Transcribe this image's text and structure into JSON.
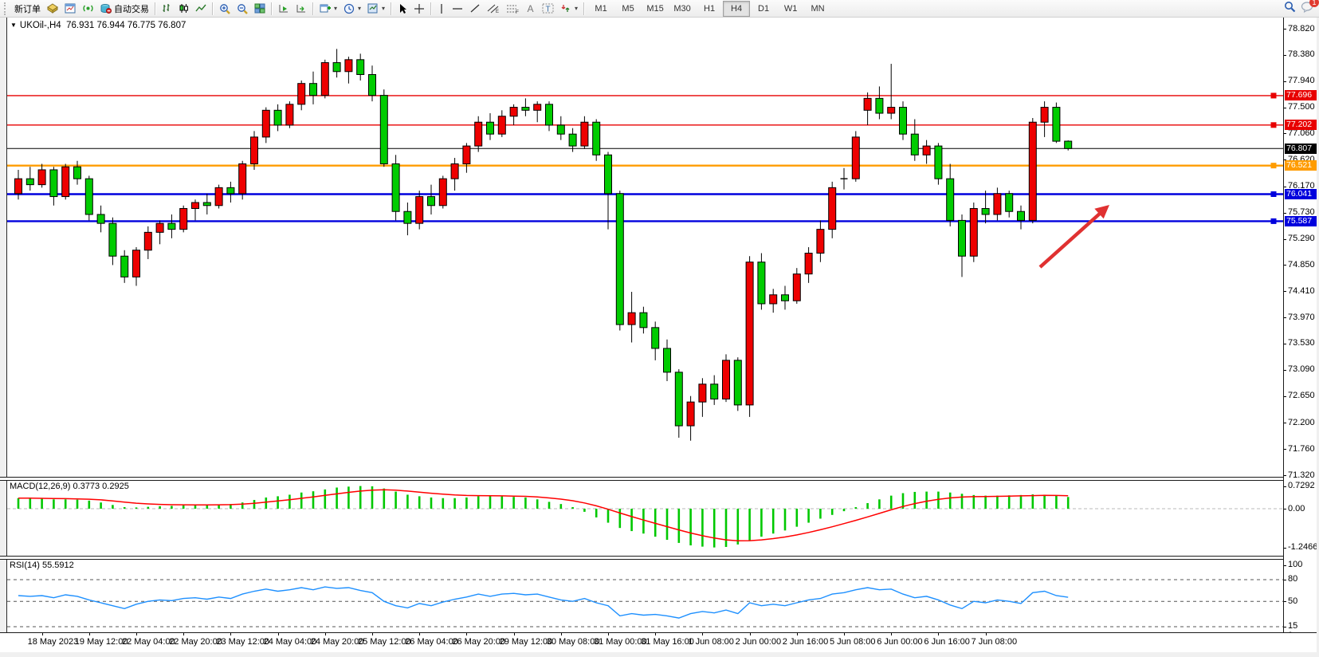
{
  "toolbar": {
    "new_order_label": "新订单",
    "autotrading_label": "自动交易",
    "timeframes": [
      "M1",
      "M5",
      "M15",
      "M30",
      "H1",
      "H4",
      "D1",
      "W1",
      "MN"
    ],
    "active_timeframe": "H4",
    "notification_badge": "1"
  },
  "chart": {
    "symbol": "UKOil-,H4",
    "ohlc": "76.931 76.944 76.775 76.807",
    "price_axis_ticks": [
      "78.820",
      "78.380",
      "77.940",
      "77.500",
      "77.060",
      "76.620",
      "76.170",
      "75.730",
      "75.290",
      "74.850",
      "74.410",
      "73.970",
      "73.530",
      "73.090",
      "72.650",
      "72.200",
      "71.760",
      "71.320"
    ],
    "levels": [
      {
        "price": 77.696,
        "label": "77.696",
        "color": "#e80000",
        "width": 1.4,
        "square": true
      },
      {
        "price": 77.202,
        "label": "77.202",
        "color": "#e80000",
        "width": 1.4,
        "square": true
      },
      {
        "price": 76.807,
        "label": "76.807",
        "color": "#000000",
        "width": 1,
        "square": false
      },
      {
        "price": 76.521,
        "label": "76.521",
        "color": "#ff9c00",
        "width": 2.4,
        "square": true
      },
      {
        "price": 76.041,
        "label": "76.041",
        "color": "#0000dd",
        "width": 2.4,
        "square": true
      },
      {
        "price": 75.587,
        "label": "75.587",
        "color": "#0000dd",
        "width": 2.4,
        "square": true
      }
    ],
    "time_axis": [
      "18 May 2023",
      "19 May 12:00",
      "22 May 04:00",
      "22 May 20:00",
      "23 May 12:00",
      "24 May 04:00",
      "24 May 20:00",
      "25 May 12:00",
      "26 May 04:00",
      "26 May 20:00",
      "29 May 12:00",
      "30 May 08:00",
      "31 May 00:00",
      "31 May 16:00",
      "1 Jun 08:00",
      "2 Jun 00:00",
      "2 Jun 16:00",
      "5 Jun 08:00",
      "6 Jun 00:00",
      "6 Jun 16:00",
      "7 Jun 08:00"
    ],
    "annotation": {
      "type": "arrow-up-right",
      "color": "#e03131"
    }
  },
  "macd": {
    "label": "MACD(12,26,9) 0.3773 0.2925",
    "scale": [
      "0.7292",
      "0.00",
      "-1.2466"
    ],
    "histogram_color": "#00c800",
    "signal_color": "#ff0000"
  },
  "rsi": {
    "label": "RSI(14) 55.5912",
    "scale": [
      "100",
      "80",
      "50",
      "15",
      "0"
    ],
    "levels": [
      80,
      50,
      15
    ],
    "line_color": "#1e90ff"
  },
  "chart_data": {
    "type": "candlestick",
    "symbol": "UKOil-",
    "period": "H4",
    "up_color": "#ee0000",
    "down_color": "#00cc00",
    "candles": [
      [
        76.05,
        76.45,
        75.95,
        76.3
      ],
      [
        76.3,
        76.5,
        76.1,
        76.2
      ],
      [
        76.2,
        76.55,
        76.15,
        76.45
      ],
      [
        76.45,
        76.5,
        75.85,
        76.0
      ],
      [
        76.0,
        76.55,
        75.95,
        76.5
      ],
      [
        76.5,
        76.6,
        76.2,
        76.3
      ],
      [
        76.3,
        76.35,
        75.6,
        75.7
      ],
      [
        75.7,
        75.85,
        75.4,
        75.55
      ],
      [
        75.55,
        75.65,
        74.85,
        75.0
      ],
      [
        75.0,
        75.1,
        74.55,
        74.65
      ],
      [
        74.65,
        75.15,
        74.5,
        75.1
      ],
      [
        75.1,
        75.5,
        74.95,
        75.4
      ],
      [
        75.4,
        75.6,
        75.2,
        75.55
      ],
      [
        75.55,
        75.7,
        75.3,
        75.45
      ],
      [
        75.45,
        75.85,
        75.4,
        75.8
      ],
      [
        75.8,
        75.95,
        75.6,
        75.9
      ],
      [
        75.9,
        76.05,
        75.7,
        75.85
      ],
      [
        75.85,
        76.2,
        75.8,
        76.15
      ],
      [
        76.15,
        76.25,
        75.9,
        76.05
      ],
      [
        76.05,
        76.6,
        75.95,
        76.55
      ],
      [
        76.55,
        77.1,
        76.45,
        77.0
      ],
      [
        77.0,
        77.5,
        76.9,
        77.45
      ],
      [
        77.45,
        77.55,
        77.1,
        77.2
      ],
      [
        77.2,
        77.6,
        77.15,
        77.55
      ],
      [
        77.55,
        77.95,
        77.45,
        77.9
      ],
      [
        77.9,
        78.1,
        77.55,
        77.7
      ],
      [
        77.7,
        78.3,
        77.65,
        78.25
      ],
      [
        78.25,
        78.48,
        78.0,
        78.1
      ],
      [
        78.1,
        78.35,
        77.9,
        78.3
      ],
      [
        78.3,
        78.4,
        77.95,
        78.05
      ],
      [
        78.05,
        78.2,
        77.6,
        77.7
      ],
      [
        77.7,
        77.8,
        76.5,
        76.55
      ],
      [
        76.55,
        76.7,
        75.6,
        75.75
      ],
      [
        75.75,
        75.9,
        75.35,
        75.55
      ],
      [
        75.55,
        76.1,
        75.45,
        76.0
      ],
      [
        76.0,
        76.2,
        75.7,
        75.85
      ],
      [
        75.85,
        76.35,
        75.8,
        76.3
      ],
      [
        76.3,
        76.65,
        76.1,
        76.55
      ],
      [
        76.55,
        76.9,
        76.4,
        76.85
      ],
      [
        76.85,
        77.35,
        76.75,
        77.25
      ],
      [
        77.25,
        77.4,
        76.95,
        77.05
      ],
      [
        77.05,
        77.45,
        77.0,
        77.35
      ],
      [
        77.35,
        77.55,
        77.2,
        77.5
      ],
      [
        77.5,
        77.65,
        77.35,
        77.45
      ],
      [
        77.45,
        77.6,
        77.25,
        77.55
      ],
      [
        77.55,
        77.6,
        77.1,
        77.2
      ],
      [
        77.2,
        77.35,
        76.95,
        77.05
      ],
      [
        77.05,
        77.15,
        76.75,
        76.85
      ],
      [
        76.85,
        77.35,
        76.8,
        77.25
      ],
      [
        77.25,
        77.3,
        76.6,
        76.7
      ],
      [
        76.7,
        76.75,
        75.45,
        76.05
      ],
      [
        76.05,
        76.1,
        73.75,
        73.85
      ],
      [
        73.85,
        74.4,
        73.55,
        74.05
      ],
      [
        74.05,
        74.15,
        73.7,
        73.8
      ],
      [
        73.8,
        73.9,
        73.25,
        73.45
      ],
      [
        73.45,
        73.6,
        72.9,
        73.05
      ],
      [
        73.05,
        73.1,
        71.95,
        72.15
      ],
      [
        72.15,
        72.65,
        71.9,
        72.55
      ],
      [
        72.55,
        72.95,
        72.3,
        72.85
      ],
      [
        72.85,
        73.0,
        72.5,
        72.6
      ],
      [
        72.6,
        73.35,
        72.55,
        73.25
      ],
      [
        73.25,
        73.3,
        72.4,
        72.5
      ],
      [
        72.5,
        75.0,
        72.3,
        74.9
      ],
      [
        74.9,
        75.05,
        74.1,
        74.2
      ],
      [
        74.2,
        74.45,
        74.05,
        74.35
      ],
      [
        74.35,
        74.5,
        74.1,
        74.25
      ],
      [
        74.25,
        74.8,
        74.2,
        74.7
      ],
      [
        74.7,
        75.15,
        74.55,
        75.05
      ],
      [
        75.05,
        75.6,
        74.9,
        75.45
      ],
      [
        75.45,
        76.25,
        75.3,
        76.15
      ],
      [
        76.3,
        76.48,
        76.12,
        76.3
      ],
      [
        76.3,
        77.1,
        76.25,
        77.0
      ],
      [
        77.45,
        77.75,
        77.2,
        77.65
      ],
      [
        77.65,
        77.85,
        77.3,
        77.4
      ],
      [
        77.4,
        78.23,
        77.3,
        77.5
      ],
      [
        77.5,
        77.6,
        76.95,
        77.05
      ],
      [
        77.05,
        77.3,
        76.6,
        76.7
      ],
      [
        76.7,
        76.95,
        76.55,
        76.85
      ],
      [
        76.85,
        76.9,
        76.2,
        76.3
      ],
      [
        76.3,
        76.55,
        75.5,
        75.6
      ],
      [
        75.6,
        75.7,
        74.65,
        75.0
      ],
      [
        75.0,
        75.9,
        74.9,
        75.8
      ],
      [
        75.8,
        76.1,
        75.55,
        75.7
      ],
      [
        75.7,
        76.15,
        75.6,
        76.05
      ],
      [
        76.05,
        76.1,
        75.65,
        75.75
      ],
      [
        75.75,
        75.85,
        75.45,
        75.6
      ],
      [
        75.6,
        77.32,
        75.55,
        77.25
      ],
      [
        77.25,
        77.6,
        77.0,
        77.5
      ],
      [
        77.5,
        77.58,
        76.9,
        76.93
      ],
      [
        76.931,
        76.944,
        76.775,
        76.807
      ]
    ],
    "macd_histogram": [
      0.34,
      0.33,
      0.32,
      0.3,
      0.3,
      0.29,
      0.26,
      0.2,
      0.12,
      0.05,
      0.04,
      0.06,
      0.08,
      0.09,
      0.11,
      0.12,
      0.12,
      0.14,
      0.15,
      0.2,
      0.28,
      0.36,
      0.4,
      0.45,
      0.52,
      0.56,
      0.62,
      0.68,
      0.71,
      0.7292,
      0.72,
      0.65,
      0.55,
      0.45,
      0.4,
      0.36,
      0.34,
      0.34,
      0.36,
      0.4,
      0.4,
      0.4,
      0.38,
      0.36,
      0.3,
      0.22,
      0.15,
      0.05,
      -0.1,
      -0.28,
      -0.45,
      -0.62,
      -0.72,
      -0.8,
      -0.9,
      -1.0,
      -1.1,
      -1.18,
      -1.22,
      -1.2466,
      -1.23,
      -1.15,
      -1.02,
      -0.9,
      -0.8,
      -0.7,
      -0.58,
      -0.45,
      -0.32,
      -0.2,
      -0.08,
      0.05,
      0.18,
      0.3,
      0.42,
      0.5,
      0.54,
      0.55,
      0.55,
      0.52,
      0.48,
      0.44,
      0.42,
      0.42,
      0.43,
      0.44,
      0.46,
      0.45,
      0.42,
      0.3773
    ],
    "rsi_values": [
      58,
      57,
      58,
      55,
      59,
      57,
      52,
      48,
      44,
      40,
      46,
      50,
      52,
      51,
      54,
      55,
      53,
      56,
      54,
      60,
      64,
      67,
      64,
      66,
      69,
      66,
      70,
      68,
      69,
      65,
      62,
      50,
      44,
      41,
      47,
      44,
      49,
      53,
      56,
      60,
      57,
      60,
      61,
      59,
      60,
      56,
      52,
      50,
      54,
      48,
      44,
      30,
      33,
      31,
      32,
      30,
      27,
      33,
      36,
      34,
      38,
      33,
      48,
      44,
      46,
      44,
      48,
      52,
      54,
      60,
      62,
      66,
      69,
      66,
      67,
      60,
      55,
      57,
      52,
      45,
      40,
      50,
      48,
      52,
      50,
      47,
      62,
      64,
      58,
      55.59
    ]
  }
}
